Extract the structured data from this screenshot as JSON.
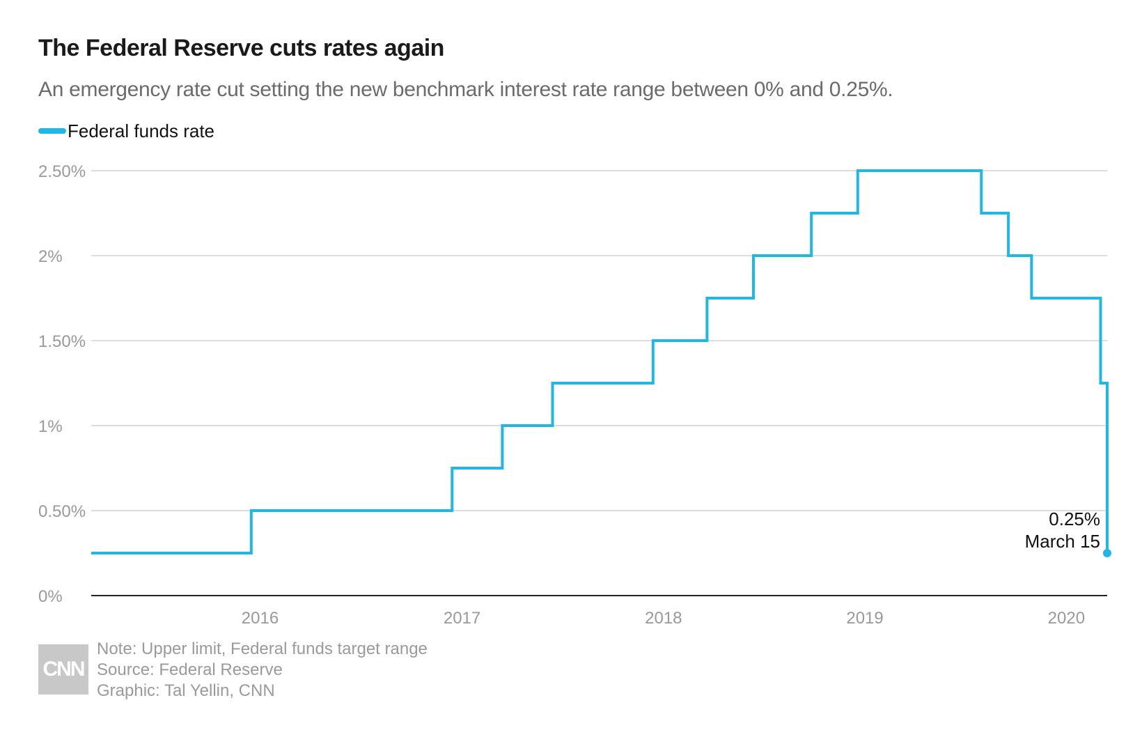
{
  "header": {
    "title": "The Federal Reserve cuts rates again",
    "subtitle": "An emergency rate cut setting the new benchmark interest rate range between 0% and 0.25%."
  },
  "legend": {
    "label": "Federal funds rate",
    "color": "#20b7e3"
  },
  "footer": {
    "logo": "CNN",
    "note": "Note: Upper limit, Federal funds target range",
    "source": "Source: Federal Reserve",
    "credit": "Graphic: Tal Yellin, CNN"
  },
  "chart_data": {
    "type": "line",
    "step": true,
    "series": [
      {
        "name": "Federal funds rate",
        "points": [
          [
            "2015-03-01",
            0.25
          ],
          [
            "2015-12-16",
            0.5
          ],
          [
            "2016-12-14",
            0.75
          ],
          [
            "2017-03-15",
            1.0
          ],
          [
            "2017-06-14",
            1.25
          ],
          [
            "2017-12-13",
            1.5
          ],
          [
            "2018-03-21",
            1.75
          ],
          [
            "2018-06-13",
            2.0
          ],
          [
            "2018-09-26",
            2.25
          ],
          [
            "2018-12-19",
            2.5
          ],
          [
            "2019-07-31",
            2.25
          ],
          [
            "2019-09-18",
            2.0
          ],
          [
            "2019-10-30",
            1.75
          ],
          [
            "2020-03-03",
            1.25
          ],
          [
            "2020-03-15",
            0.25
          ]
        ]
      }
    ],
    "x_ticks": [
      "2016",
      "2017",
      "2018",
      "2019",
      "2020"
    ],
    "y_ticks": [
      {
        "value": 0,
        "label": "0%"
      },
      {
        "value": 0.5,
        "label": "0.50%"
      },
      {
        "value": 1,
        "label": "1%"
      },
      {
        "value": 1.5,
        "label": "1.50%"
      },
      {
        "value": 2,
        "label": "2%"
      },
      {
        "value": 2.5,
        "label": "2.50%"
      }
    ],
    "xlim": [
      "2015-03-01",
      "2020-03-15"
    ],
    "ylim": [
      0,
      2.5
    ],
    "grid": true,
    "annotation": {
      "value_label": "0.25%",
      "date_label": "March 15",
      "x": "2020-03-15",
      "y": 0.25
    },
    "colors": {
      "line": "#20b7e3",
      "grid": "#dddddd",
      "axis": "#222222",
      "tick_text": "#999999"
    }
  }
}
